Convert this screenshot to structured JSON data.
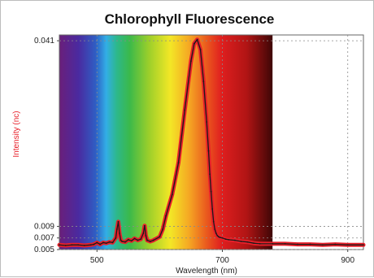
{
  "chart_data": {
    "type": "line",
    "title": "Chlorophyll Fluorescence",
    "xlabel": "Wavelength (nm)",
    "ylabel": "Intensity (nc)",
    "xlim": [
      440,
      925
    ],
    "ylim": [
      0.005,
      0.042
    ],
    "x_ticks": [
      500,
      700,
      900
    ],
    "y_ticks": [
      0.005,
      0.007,
      0.009,
      0.041
    ],
    "y_tick_labels": [
      "0.005",
      "0.007",
      "0.009",
      "0.041"
    ],
    "grid": true,
    "legend": "none",
    "spectrum_band": [
      440,
      780
    ],
    "colors": {
      "series": "#e8202a",
      "series_outline": "#1a1a1a",
      "ylabel": "#e8202a",
      "grid": "#8a8a8a"
    },
    "series": [
      {
        "x": [
          440,
          450,
          460,
          470,
          480,
          490,
          495,
          500,
          505,
          510,
          515,
          520,
          525,
          530,
          532,
          534,
          536,
          538,
          540,
          545,
          550,
          555,
          560,
          565,
          570,
          574,
          576,
          578,
          580,
          585,
          590,
          600,
          605,
          610,
          620,
          630,
          640,
          650,
          655,
          660,
          665,
          670,
          675,
          678,
          680,
          682,
          684,
          686,
          688,
          690,
          692,
          694,
          696,
          700,
          705,
          710,
          720,
          730,
          740,
          750,
          760,
          780,
          800,
          820,
          840,
          860,
          880,
          900,
          925
        ],
        "values": [
          0.0058,
          0.0057,
          0.0058,
          0.0058,
          0.0057,
          0.0058,
          0.0059,
          0.0062,
          0.0059,
          0.0062,
          0.0061,
          0.0063,
          0.0062,
          0.007,
          0.0085,
          0.0098,
          0.0078,
          0.0066,
          0.0064,
          0.0063,
          0.0067,
          0.0065,
          0.0069,
          0.0066,
          0.0068,
          0.0078,
          0.0091,
          0.0074,
          0.0066,
          0.0064,
          0.0066,
          0.0072,
          0.0085,
          0.0108,
          0.0145,
          0.02,
          0.029,
          0.0375,
          0.0405,
          0.0412,
          0.0395,
          0.034,
          0.027,
          0.022,
          0.018,
          0.015,
          0.012,
          0.0098,
          0.0085,
          0.0078,
          0.0074,
          0.0072,
          0.0071,
          0.007,
          0.0068,
          0.0067,
          0.0066,
          0.0064,
          0.0063,
          0.0061,
          0.006,
          0.006,
          0.006,
          0.0059,
          0.0059,
          0.0058,
          0.0059,
          0.0058,
          0.0058
        ]
      }
    ]
  }
}
